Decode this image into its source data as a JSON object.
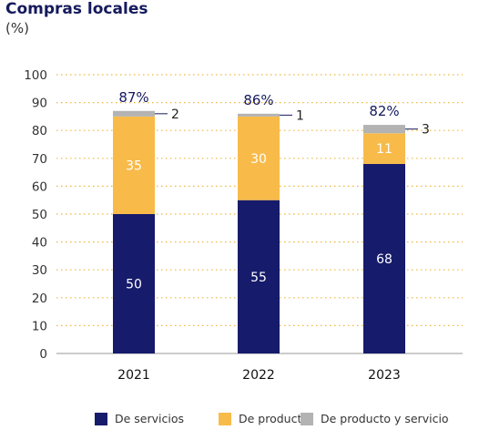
{
  "chart_data": {
    "type": "bar",
    "stacked": true,
    "title": "Compras locales",
    "subtitle": "(%)",
    "categories": [
      "2021",
      "2022",
      "2023"
    ],
    "series": [
      {
        "name": "De servicios",
        "values": [
          50,
          55,
          68
        ],
        "color": "#161b6b"
      },
      {
        "name": "De producto",
        "values": [
          35,
          30,
          11
        ],
        "color": "#f8bb4a"
      },
      {
        "name": "De producto y servicio",
        "values": [
          2,
          1,
          3
        ],
        "color": "#b3b3b3"
      }
    ],
    "totals": [
      "87%",
      "86%",
      "82%"
    ],
    "ylim": [
      0,
      100
    ],
    "yticks": [
      "0",
      "10",
      "20",
      "30",
      "40",
      "50",
      "60",
      "70",
      "80",
      "90",
      "100"
    ],
    "grid": true,
    "legend": "bottom"
  }
}
